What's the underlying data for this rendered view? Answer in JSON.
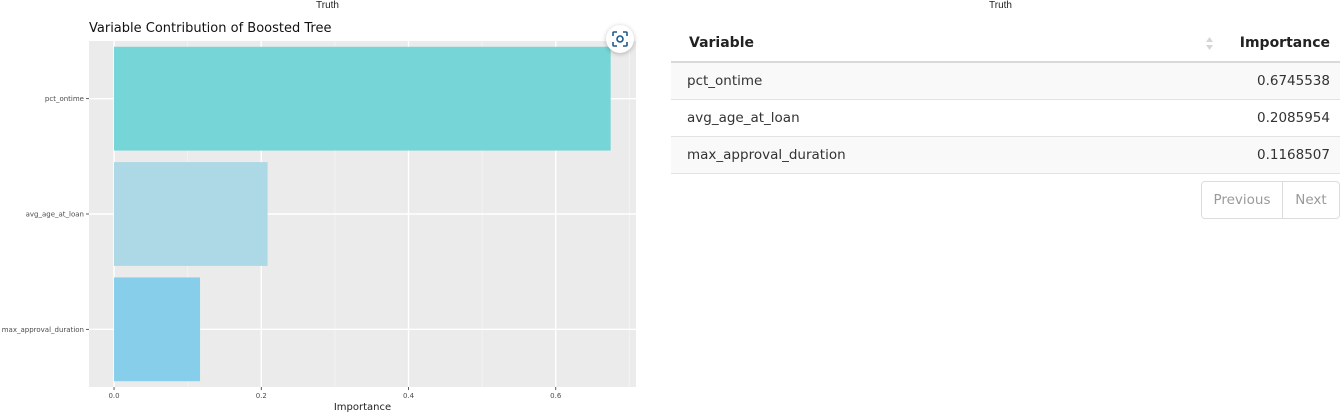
{
  "left_panel": {
    "title": "Truth"
  },
  "right_panel": {
    "title": "Truth"
  },
  "chart_data": {
    "type": "bar",
    "orientation": "horizontal",
    "title": "Variable Contribution of Boosted Tree",
    "xlabel": "Importance",
    "ylabel": "",
    "categories": [
      "pct_ontime",
      "avg_age_at_loan",
      "max_approval_duration"
    ],
    "values": [
      0.6745538,
      0.2085954,
      0.1168507
    ],
    "colors": [
      "#76d5d6",
      "#add8e6",
      "#87ceeb"
    ],
    "xlim": [
      -0.034,
      0.709
    ],
    "xticks": [
      0.0,
      0.2,
      0.4,
      0.6
    ],
    "xtick_labels": [
      "0.0",
      "0.2",
      "0.4",
      "0.6"
    ],
    "panel_background": "#ebebeb",
    "grid": true
  },
  "table": {
    "columns": [
      "Variable",
      "Importance"
    ],
    "rows": [
      [
        "pct_ontime",
        "0.6745538"
      ],
      [
        "avg_age_at_loan",
        "0.2085954"
      ],
      [
        "max_approval_duration",
        "0.1168507"
      ]
    ]
  },
  "pagination": {
    "previous": "Previous",
    "next": "Next"
  },
  "icons": {
    "screenshot": "camera-capture-icon",
    "sort": "sort-arrows-icon"
  }
}
